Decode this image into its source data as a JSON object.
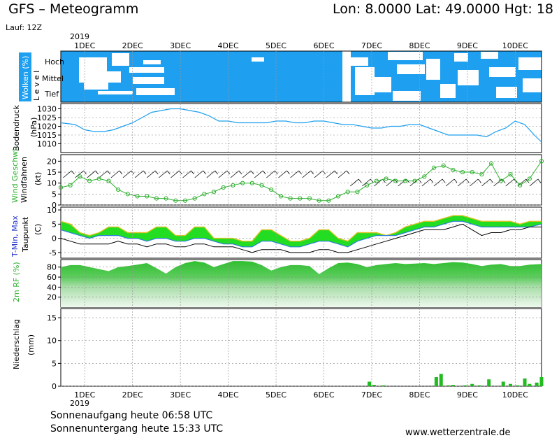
{
  "header": {
    "title": "GFS – Meteogramm",
    "coords": "Lon: 8.0000  Lat: 49.0000  Hgt: 18",
    "run": "Lauf: 12Z"
  },
  "footer": {
    "sunrise": "Sonnenaufgang heute 06:58 UTC",
    "sunset": "Sonnenuntergang heute 15:33 UTC",
    "website": "www.wetterzentrale.de"
  },
  "time_axis": {
    "year": "2019",
    "days": [
      "1DEC",
      "2DEC",
      "3DEC",
      "4DEC",
      "5DEC",
      "6DEC",
      "7DEC",
      "8DEC",
      "9DEC",
      "10DEC"
    ],
    "day_start": 0.5,
    "day_end": 10.55
  },
  "colors": {
    "cloud": "#1e9ff0",
    "pressure": "#1e9ff0",
    "wind": "#2fb02f",
    "humidity": "#33cc33",
    "precip": "#22bb22",
    "grid": "#888888"
  },
  "chart_data": [
    {
      "type": "heatmap",
      "name": "clouds",
      "ylabel_a": "Wolken (%)",
      "ylabel_b": "L e v e l",
      "levels": [
        "Hoch",
        "Mittel",
        "Tief"
      ],
      "level_label_top": "Hoch",
      "level_label_mid": "Mittel",
      "level_label_low": "Tief"
    },
    {
      "type": "line",
      "name": "pressure",
      "ylabel_a": "Bodendruck",
      "ylabel_b": "(hPa)",
      "ylim": [
        1005,
        1033
      ],
      "yticks": [
        1010,
        1015,
        1020,
        1025,
        1030
      ],
      "x": [
        0.5,
        0.8,
        1.0,
        1.2,
        1.4,
        1.6,
        1.8,
        2.0,
        2.2,
        2.4,
        2.6,
        2.8,
        3.0,
        3.2,
        3.4,
        3.6,
        3.8,
        4.0,
        4.2,
        4.4,
        4.6,
        4.8,
        5.0,
        5.2,
        5.4,
        5.6,
        5.8,
        6.0,
        6.2,
        6.4,
        6.6,
        6.8,
        7.0,
        7.2,
        7.4,
        7.6,
        7.8,
        8.0,
        8.2,
        8.4,
        8.6,
        8.8,
        9.0,
        9.2,
        9.4,
        9.6,
        9.8,
        10.0,
        10.2,
        10.4,
        10.55
      ],
      "values": [
        1022,
        1021,
        1018,
        1017,
        1017,
        1018,
        1020,
        1022,
        1025,
        1028,
        1029,
        1030,
        1030,
        1029,
        1028,
        1026,
        1023,
        1023,
        1022,
        1022,
        1022,
        1022,
        1023,
        1023,
        1022,
        1022,
        1023,
        1023,
        1022,
        1021,
        1021,
        1020,
        1019,
        1019,
        1020,
        1020,
        1021,
        1021,
        1019,
        1017,
        1015,
        1015,
        1015,
        1015,
        1014,
        1017,
        1019,
        1023,
        1021,
        1015,
        1011
      ]
    },
    {
      "type": "line",
      "name": "wind",
      "ylabel_a": "Wind Geschwi.",
      "ylabel_b": "Windfahnen",
      "ylabel_c": "(kt)",
      "ylim": [
        0,
        23
      ],
      "yticks": [
        0,
        5,
        10,
        15,
        20
      ],
      "x": [
        0.5,
        0.7,
        0.9,
        1.1,
        1.3,
        1.5,
        1.7,
        1.9,
        2.1,
        2.3,
        2.5,
        2.7,
        2.9,
        3.1,
        3.3,
        3.5,
        3.7,
        3.9,
        4.1,
        4.3,
        4.5,
        4.7,
        4.9,
        5.1,
        5.3,
        5.5,
        5.7,
        5.9,
        6.1,
        6.3,
        6.5,
        6.7,
        6.9,
        7.1,
        7.3,
        7.5,
        7.7,
        7.9,
        8.1,
        8.3,
        8.5,
        8.7,
        8.9,
        9.1,
        9.3,
        9.5,
        9.7,
        9.9,
        10.1,
        10.3,
        10.55
      ],
      "values": [
        8,
        9,
        13,
        11,
        12,
        11,
        7,
        5,
        4,
        4,
        3,
        3,
        2,
        2,
        3,
        5,
        6,
        8,
        9,
        10,
        10,
        9,
        7,
        4,
        3,
        3,
        3,
        2,
        2,
        4,
        6,
        6,
        9,
        11,
        12,
        11,
        11,
        11,
        13,
        17,
        18,
        16,
        15,
        15,
        14,
        19,
        11,
        14,
        9,
        12,
        20
      ]
    },
    {
      "type": "area",
      "name": "temperature",
      "ylabel_a": "T-Min, Max",
      "ylabel_b": "Taupunkt",
      "ylabel_c": "(C)",
      "ylim": [
        -7,
        11
      ],
      "yticks": [
        -5,
        0,
        5,
        10
      ],
      "series": [
        {
          "name": "Max",
          "x": [
            0.5,
            0.7,
            0.9,
            1.1,
            1.3,
            1.5,
            1.7,
            1.9,
            2.1,
            2.3,
            2.5,
            2.7,
            2.9,
            3.1,
            3.3,
            3.5,
            3.7,
            3.9,
            4.1,
            4.3,
            4.5,
            4.7,
            4.9,
            5.1,
            5.3,
            5.5,
            5.7,
            5.9,
            6.1,
            6.3,
            6.5,
            6.7,
            6.9,
            7.1,
            7.3,
            7.5,
            7.7,
            7.9,
            8.1,
            8.3,
            8.5,
            8.7,
            8.9,
            9.1,
            9.3,
            9.5,
            9.7,
            9.9,
            10.1,
            10.3,
            10.55
          ],
          "values": [
            6,
            5,
            2,
            1,
            2,
            4,
            4,
            2,
            2,
            2,
            4,
            4,
            1,
            1,
            4,
            4,
            0,
            0,
            0,
            -1,
            -1,
            3,
            3,
            1,
            -1,
            -1,
            0,
            3,
            3,
            0,
            -1,
            2,
            2,
            2,
            1,
            2,
            4,
            5,
            6,
            6,
            7,
            8,
            8,
            7,
            6,
            6,
            6,
            6,
            5,
            6,
            6
          ]
        },
        {
          "name": "Min",
          "x": [
            0.5,
            0.7,
            0.9,
            1.1,
            1.3,
            1.5,
            1.7,
            1.9,
            2.1,
            2.3,
            2.5,
            2.7,
            2.9,
            3.1,
            3.3,
            3.5,
            3.7,
            3.9,
            4.1,
            4.3,
            4.5,
            4.7,
            4.9,
            5.1,
            5.3,
            5.5,
            5.7,
            5.9,
            6.1,
            6.3,
            6.5,
            6.7,
            6.9,
            7.1,
            7.3,
            7.5,
            7.7,
            7.9,
            8.1,
            8.3,
            8.5,
            8.7,
            8.9,
            9.1,
            9.3,
            9.5,
            9.7,
            9.9,
            10.1,
            10.3,
            10.55
          ],
          "values": [
            3,
            2,
            1,
            0,
            1,
            1,
            1,
            0,
            0,
            -1,
            0,
            0,
            -1,
            -1,
            0,
            0,
            -1,
            -2,
            -2,
            -3,
            -3,
            -1,
            -1,
            -2,
            -3,
            -3,
            -2,
            -1,
            -1,
            -2,
            -3,
            -1,
            0,
            1,
            1,
            1,
            2,
            3,
            4,
            4,
            5,
            6,
            6,
            5,
            4,
            4,
            4,
            4,
            4,
            4,
            5
          ]
        },
        {
          "name": "Taupunkt",
          "x": [
            0.5,
            0.7,
            0.9,
            1.1,
            1.3,
            1.5,
            1.7,
            1.9,
            2.1,
            2.3,
            2.5,
            2.7,
            2.9,
            3.1,
            3.3,
            3.5,
            3.7,
            3.9,
            4.1,
            4.3,
            4.5,
            4.7,
            4.9,
            5.1,
            5.3,
            5.5,
            5.7,
            5.9,
            6.1,
            6.3,
            6.5,
            6.7,
            6.9,
            7.1,
            7.3,
            7.5,
            7.7,
            7.9,
            8.1,
            8.3,
            8.5,
            8.7,
            8.9,
            9.1,
            9.3,
            9.5,
            9.7,
            9.9,
            10.1,
            10.3,
            10.55
          ],
          "values": [
            0,
            -1,
            -2,
            -2,
            -2,
            -2,
            -1,
            -2,
            -2,
            -3,
            -2,
            -2,
            -3,
            -3,
            -2,
            -2,
            -3,
            -3,
            -3,
            -4,
            -5,
            -4,
            -4,
            -4,
            -5,
            -5,
            -5,
            -4,
            -4,
            -5,
            -5,
            -4,
            -3,
            -2,
            -1,
            0,
            1,
            2,
            3,
            3,
            3,
            4,
            5,
            3,
            1,
            2,
            2,
            3,
            3,
            4,
            4
          ]
        }
      ]
    },
    {
      "type": "area",
      "name": "humidity",
      "ylabel_a": "2m RF (%)",
      "ylim": [
        0,
        95
      ],
      "yticks": [
        20,
        40,
        60,
        80
      ],
      "x": [
        0.5,
        0.7,
        0.9,
        1.1,
        1.3,
        1.5,
        1.7,
        1.9,
        2.1,
        2.3,
        2.5,
        2.7,
        2.9,
        3.1,
        3.3,
        3.5,
        3.7,
        3.9,
        4.1,
        4.3,
        4.5,
        4.7,
        4.9,
        5.1,
        5.3,
        5.5,
        5.7,
        5.9,
        6.1,
        6.3,
        6.5,
        6.7,
        6.9,
        7.1,
        7.3,
        7.5,
        7.7,
        7.9,
        8.1,
        8.3,
        8.5,
        8.7,
        8.9,
        9.1,
        9.3,
        9.5,
        9.7,
        9.9,
        10.1,
        10.3,
        10.55
      ],
      "values": [
        80,
        84,
        84,
        80,
        76,
        72,
        80,
        82,
        85,
        88,
        78,
        67,
        80,
        88,
        92,
        89,
        80,
        86,
        92,
        92,
        91,
        84,
        73,
        80,
        84,
        84,
        82,
        66,
        78,
        88,
        89,
        86,
        80,
        84,
        86,
        88,
        86,
        87,
        88,
        86,
        88,
        90,
        89,
        86,
        82,
        85,
        86,
        82,
        82,
        85,
        86
      ]
    },
    {
      "type": "bar",
      "name": "precipitation",
      "ylabel_a": "Niederschlag",
      "ylabel_b": "(mm)",
      "ylim": [
        0,
        17
      ],
      "yticks": [
        0,
        5,
        10,
        15
      ],
      "x": [
        6.95,
        7.05,
        7.25,
        8.35,
        8.45,
        8.6,
        8.7,
        8.95,
        9.1,
        9.25,
        9.45,
        9.75,
        9.9,
        10.05,
        10.2,
        10.3,
        10.45,
        10.55
      ],
      "values": [
        1.0,
        0.3,
        0.2,
        2.0,
        2.7,
        0.2,
        0.3,
        0.2,
        0.5,
        0.2,
        1.5,
        1.0,
        0.5,
        0.2,
        1.7,
        0.5,
        0.8,
        2.0
      ]
    }
  ]
}
